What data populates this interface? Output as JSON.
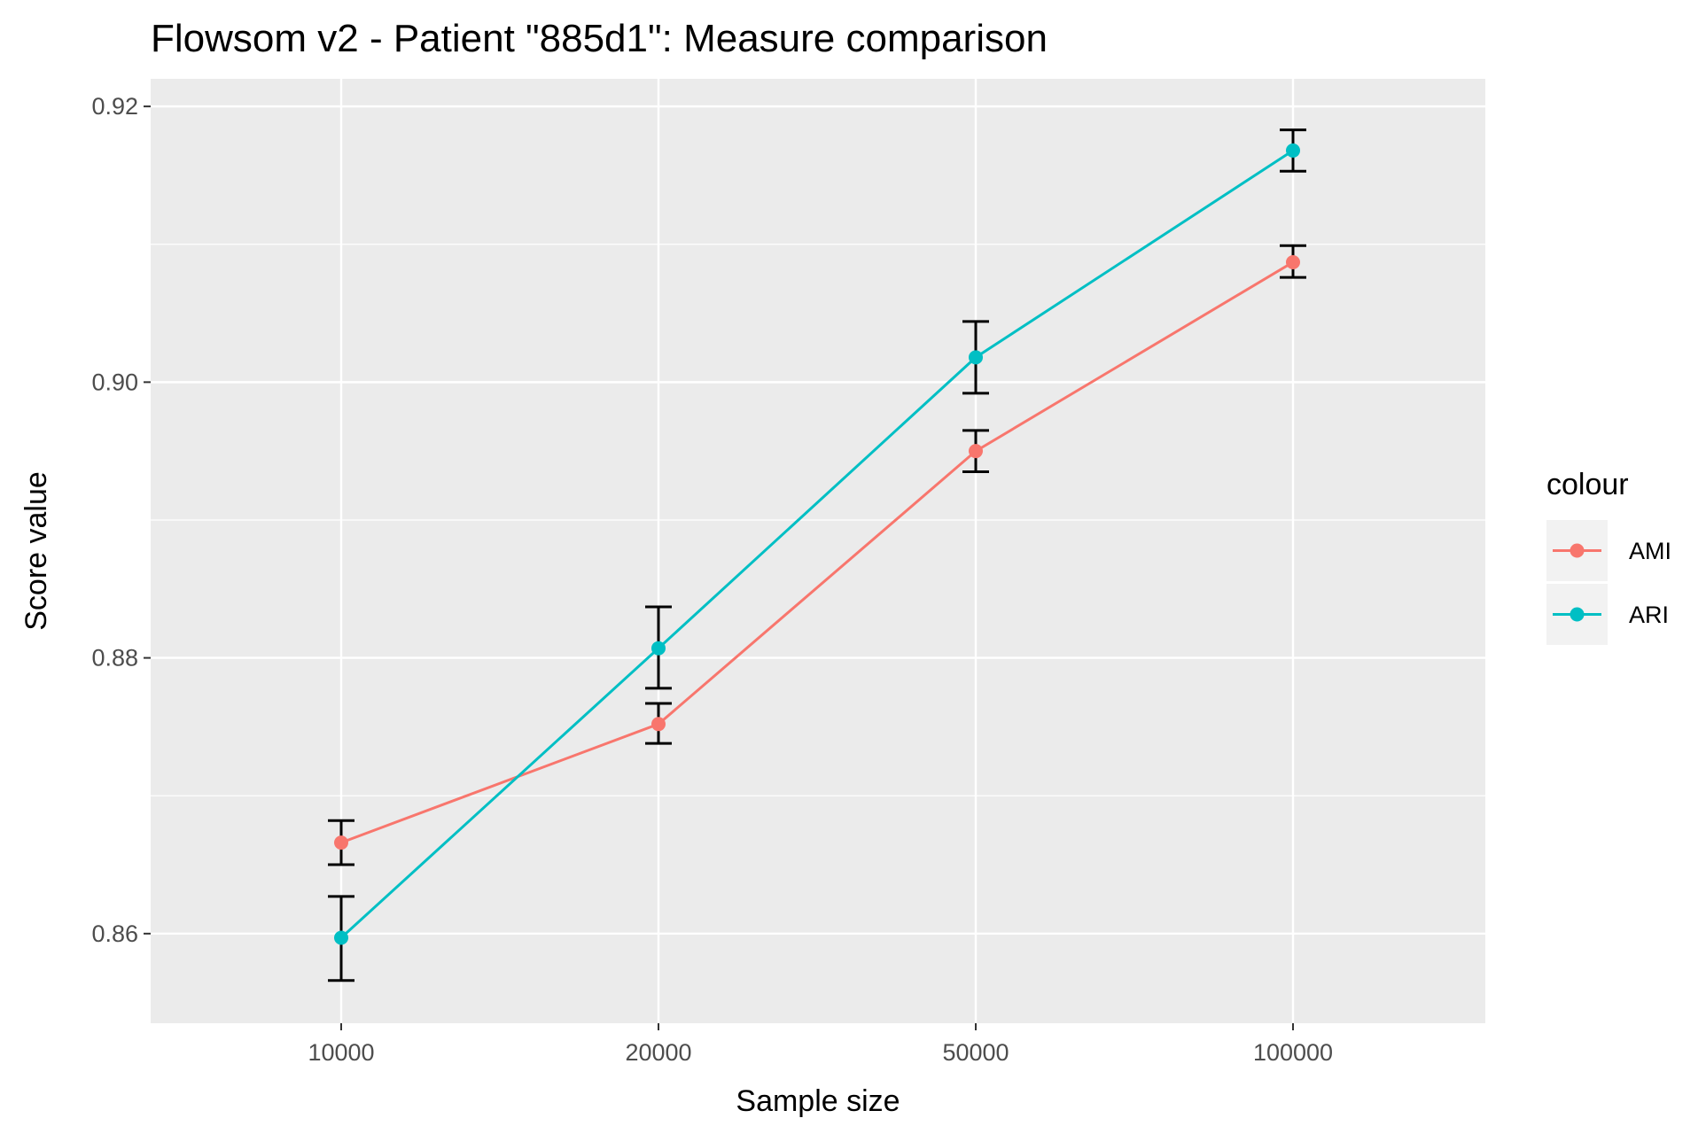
{
  "chart_data": {
    "type": "line",
    "title": "Flowsom v2 - Patient \"885d1\": Measure comparison",
    "xlabel": "Sample size",
    "ylabel": "Score value",
    "categories": [
      "10000",
      "20000",
      "50000",
      "100000"
    ],
    "y_ticks": [
      "0.86",
      "0.88",
      "0.90",
      "0.92"
    ],
    "ylim": [
      0.8535,
      0.922
    ],
    "grid": true,
    "legend": {
      "title": "colour",
      "placement": "right"
    },
    "series": [
      {
        "name": "AMI",
        "color": "#F8766D",
        "values": [
          0.8666,
          0.8752,
          0.895,
          0.9087
        ],
        "error_low": [
          0.865,
          0.8738,
          0.8935,
          0.9076
        ],
        "error_high": [
          0.8682,
          0.8767,
          0.8965,
          0.9099
        ]
      },
      {
        "name": "ARI",
        "color": "#00BFC4",
        "values": [
          0.8597,
          0.8807,
          0.9018,
          0.9168
        ],
        "error_low": [
          0.8566,
          0.8778,
          0.8992,
          0.9153
        ],
        "error_high": [
          0.8627,
          0.8837,
          0.9044,
          0.9183
        ]
      }
    ],
    "errorbar_color": "#000000"
  }
}
